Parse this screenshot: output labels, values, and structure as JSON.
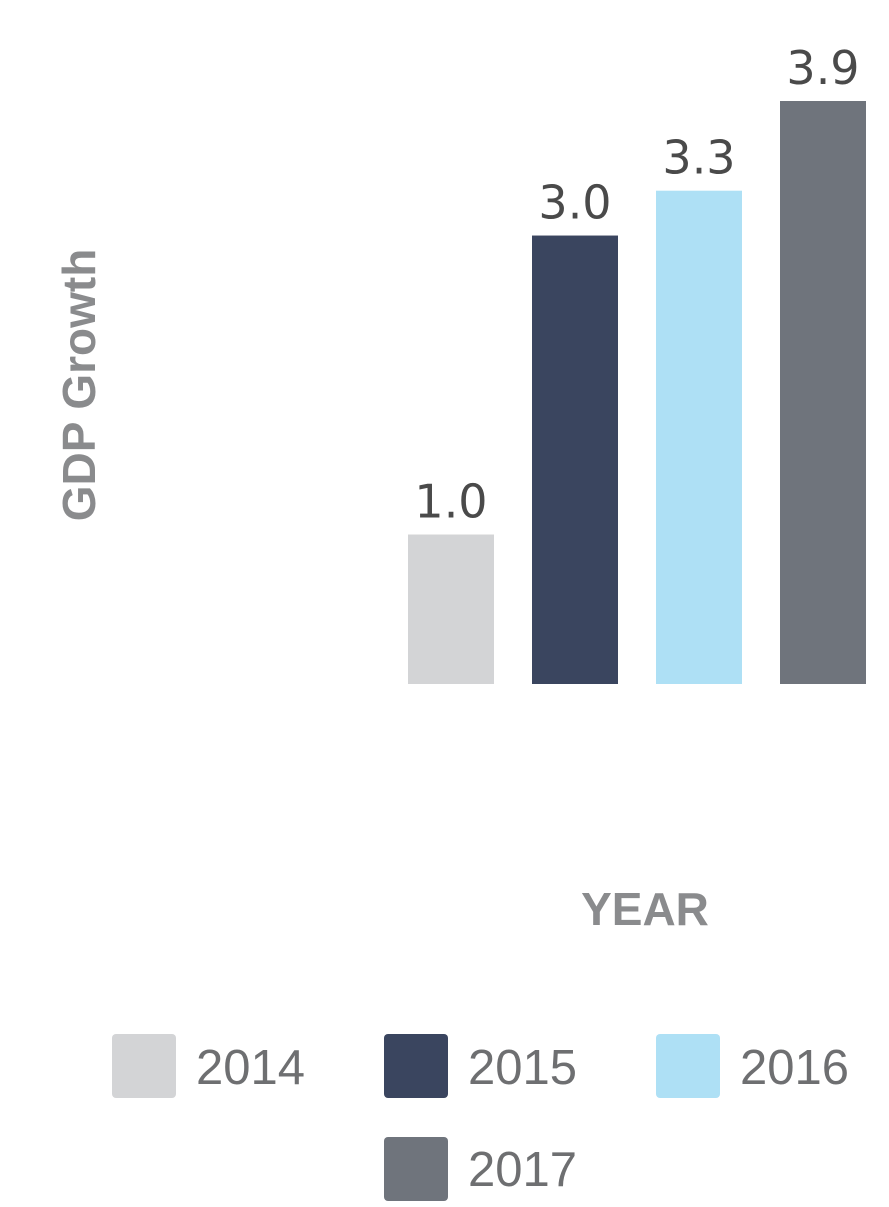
{
  "chart_data": {
    "type": "bar",
    "title": "",
    "xlabel": "YEAR",
    "ylabel": "GDP Growth",
    "categories": [
      "2014",
      "2015",
      "2016",
      "2017"
    ],
    "values": [
      1.0,
      3.0,
      3.3,
      3.9
    ],
    "value_labels": [
      "1.0",
      "3.0",
      "3.3",
      "3.9"
    ],
    "colors": [
      "#d3d4d6",
      "#3a455f",
      "#aee0f5",
      "#6f747c"
    ],
    "ylim": [
      0,
      3.9
    ],
    "grid": false,
    "legend": {
      "placement": "bottom",
      "entries": [
        "2014",
        "2015",
        "2016",
        "2017"
      ]
    }
  }
}
